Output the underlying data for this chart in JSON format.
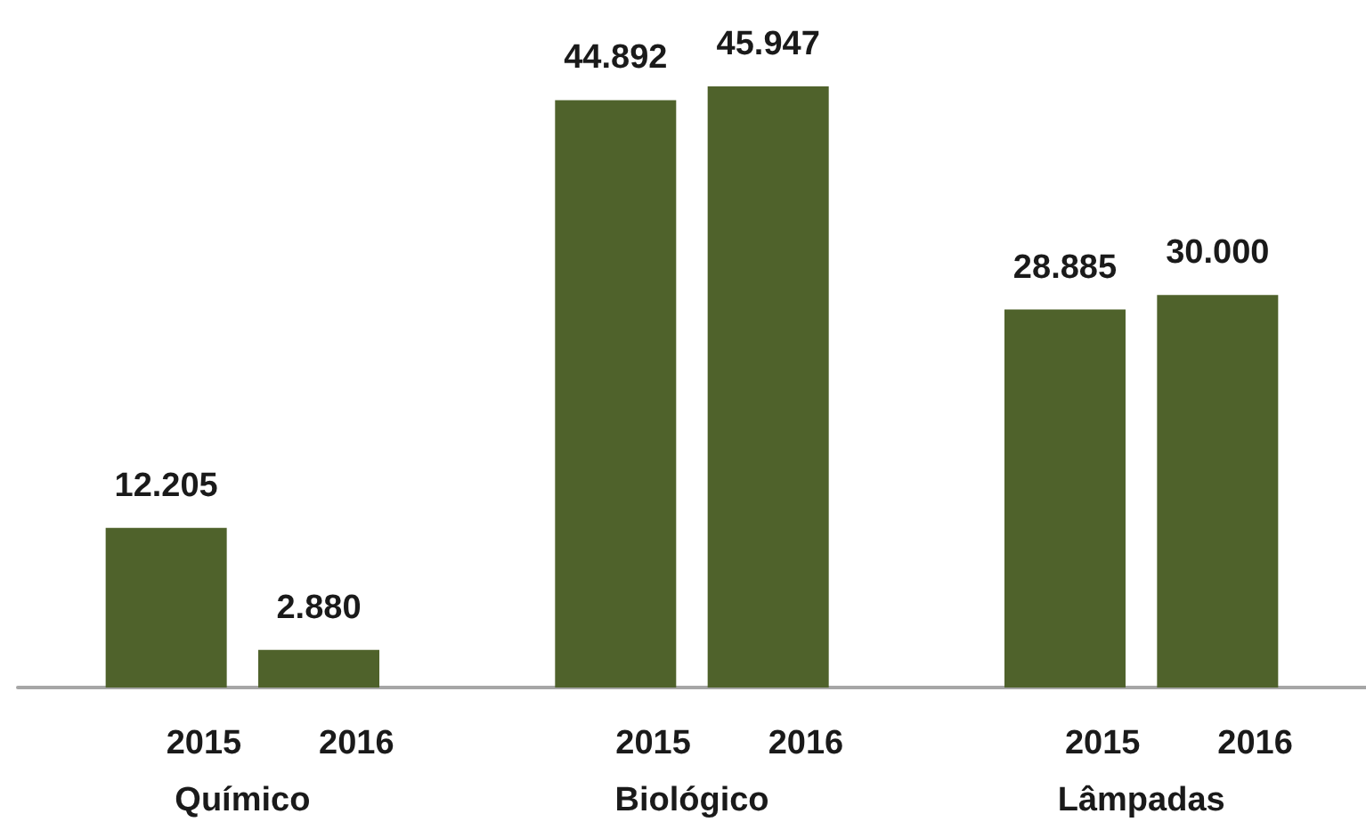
{
  "chart_data": {
    "type": "bar",
    "categories": [
      "Químico",
      "Biológico",
      "Lâmpadas"
    ],
    "series": [
      {
        "name": "2015",
        "color": "#4f622b",
        "values": [
          12205,
          44892,
          28885
        ],
        "value_labels": [
          "12.205",
          "44.892",
          "28.885"
        ]
      },
      {
        "name": "2016",
        "color": "#4f622b",
        "values": [
          2880,
          45947,
          30000
        ],
        "value_labels": [
          "2.880",
          "45.947",
          "30.000"
        ]
      }
    ],
    "grid": false,
    "legend": false
  }
}
